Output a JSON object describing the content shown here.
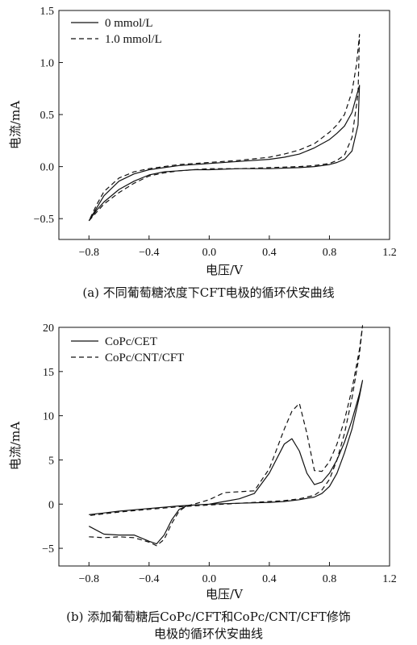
{
  "chart_data": [
    {
      "type": "line",
      "caption": "(a) 不同葡萄糖浓度下CFT电极的循环伏安曲线",
      "xlabel": "电压/V",
      "ylabel": "电流/mA",
      "xlim": [
        -1.0,
        1.2
      ],
      "ylim": [
        -0.7,
        1.5
      ],
      "xticks": [
        -0.8,
        -0.4,
        0.0,
        0.4,
        0.8,
        1.2
      ],
      "yticks": [
        -0.5,
        0.0,
        0.5,
        1.0,
        1.5
      ],
      "xtick_labels": [
        "−0.8",
        "−0.4",
        "0.0",
        "0.4",
        "0.8",
        "1.2"
      ],
      "ytick_labels": [
        "−0.5",
        "0.0",
        "0.5",
        "1.0",
        "1.5"
      ],
      "legend_position": "top-left",
      "series": [
        {
          "name": "0 mmol/L",
          "style": "solid",
          "x": [
            -0.8,
            -0.75,
            -0.7,
            -0.6,
            -0.5,
            -0.4,
            -0.3,
            -0.2,
            -0.1,
            0.0,
            0.2,
            0.4,
            0.6,
            0.7,
            0.8,
            0.85,
            0.9,
            0.95,
            0.99,
            1.0,
            0.98,
            0.95,
            0.9,
            0.85,
            0.8,
            0.7,
            0.6,
            0.5,
            0.4,
            0.2,
            0.0,
            -0.2,
            -0.3,
            -0.4,
            -0.5,
            -0.6,
            -0.7,
            -0.75,
            -0.8
          ],
          "y": [
            -0.52,
            -0.42,
            -0.34,
            -0.22,
            -0.14,
            -0.08,
            -0.05,
            -0.04,
            -0.03,
            -0.03,
            -0.02,
            -0.02,
            -0.01,
            0.0,
            0.02,
            0.04,
            0.07,
            0.15,
            0.4,
            0.78,
            0.68,
            0.52,
            0.39,
            0.32,
            0.26,
            0.18,
            0.12,
            0.09,
            0.07,
            0.05,
            0.03,
            0.01,
            -0.01,
            -0.03,
            -0.07,
            -0.14,
            -0.28,
            -0.4,
            -0.52
          ]
        },
        {
          "name": "1.0 mmol/L",
          "style": "dashed",
          "x": [
            -0.8,
            -0.75,
            -0.7,
            -0.6,
            -0.5,
            -0.4,
            -0.3,
            -0.2,
            -0.1,
            0.0,
            0.2,
            0.4,
            0.6,
            0.7,
            0.8,
            0.85,
            0.9,
            0.95,
            0.99,
            1.0,
            0.98,
            0.95,
            0.9,
            0.85,
            0.8,
            0.7,
            0.6,
            0.5,
            0.4,
            0.2,
            0.0,
            -0.2,
            -0.3,
            -0.4,
            -0.5,
            -0.6,
            -0.7,
            -0.75,
            -0.8
          ],
          "y": [
            -0.52,
            -0.44,
            -0.36,
            -0.25,
            -0.16,
            -0.09,
            -0.06,
            -0.04,
            -0.03,
            -0.02,
            -0.02,
            -0.01,
            0.0,
            0.01,
            0.03,
            0.06,
            0.11,
            0.28,
            0.7,
            1.27,
            0.98,
            0.72,
            0.5,
            0.4,
            0.33,
            0.22,
            0.16,
            0.12,
            0.09,
            0.06,
            0.04,
            0.02,
            0.0,
            -0.02,
            -0.05,
            -0.11,
            -0.24,
            -0.37,
            -0.52
          ]
        }
      ]
    },
    {
      "type": "line",
      "caption_lines": [
        "(b) 添加葡萄糖后CoPc/CFT和CoPc/CNT/CFT修饰",
        "电极的循环伏安曲线"
      ],
      "xlabel": "电压/V",
      "ylabel": "电流/mA",
      "xlim": [
        -1.0,
        1.2
      ],
      "ylim": [
        -7,
        20
      ],
      "xticks": [
        -0.8,
        -0.4,
        0.0,
        0.4,
        0.8,
        1.2
      ],
      "yticks": [
        -5,
        0,
        5,
        10,
        15,
        20
      ],
      "xtick_labels": [
        "−0.8",
        "−0.4",
        "0.0",
        "0.4",
        "0.8",
        "1.2"
      ],
      "ytick_labels": [
        "−5",
        "0",
        "5",
        "10",
        "15",
        "20"
      ],
      "legend_position": "top-left",
      "series": [
        {
          "name": "CoPc/CET",
          "style": "solid",
          "x": [
            -0.8,
            -0.7,
            -0.6,
            -0.5,
            -0.4,
            -0.35,
            -0.3,
            -0.25,
            -0.2,
            -0.15,
            -0.1,
            0.0,
            0.1,
            0.2,
            0.3,
            0.4,
            0.5,
            0.55,
            0.6,
            0.65,
            0.7,
            0.75,
            0.8,
            0.85,
            0.9,
            0.95,
            1.0,
            1.02,
            1.0,
            0.95,
            0.9,
            0.85,
            0.8,
            0.75,
            0.7,
            0.6,
            0.5,
            0.4,
            0.3,
            0.2,
            0.1,
            0.0,
            -0.2,
            -0.4,
            -0.6,
            -0.8
          ],
          "y": [
            -2.5,
            -3.4,
            -3.5,
            -3.5,
            -4.2,
            -4.5,
            -3.5,
            -1.8,
            -0.6,
            -0.2,
            -0.1,
            0.0,
            0.3,
            0.6,
            1.2,
            3.5,
            6.8,
            7.4,
            6.0,
            3.5,
            2.2,
            2.5,
            3.5,
            5.0,
            7.0,
            9.5,
            12.5,
            14.0,
            12.2,
            8.5,
            5.8,
            3.5,
            2.0,
            1.2,
            0.8,
            0.5,
            0.3,
            0.2,
            0.15,
            0.1,
            0.05,
            0.0,
            -0.2,
            -0.5,
            -0.8,
            -1.2
          ]
        },
        {
          "name": "CoPc/CNT/CFT",
          "style": "dashed",
          "x": [
            -0.8,
            -0.7,
            -0.6,
            -0.5,
            -0.4,
            -0.35,
            -0.3,
            -0.25,
            -0.2,
            -0.15,
            -0.1,
            0.0,
            0.1,
            0.2,
            0.3,
            0.4,
            0.5,
            0.55,
            0.6,
            0.65,
            0.7,
            0.75,
            0.8,
            0.85,
            0.9,
            0.95,
            1.0,
            1.02,
            1.0,
            0.95,
            0.9,
            0.85,
            0.8,
            0.75,
            0.7,
            0.6,
            0.5,
            0.4,
            0.3,
            0.2,
            0.1,
            0.0,
            -0.2,
            -0.4,
            -0.6,
            -0.8
          ],
          "y": [
            -3.7,
            -3.8,
            -3.7,
            -3.8,
            -4.3,
            -4.7,
            -4.0,
            -2.2,
            -0.8,
            -0.2,
            0.0,
            0.5,
            1.3,
            1.4,
            1.5,
            4.0,
            8.5,
            10.5,
            11.4,
            8.0,
            3.8,
            3.7,
            4.8,
            6.8,
            9.5,
            13.0,
            17.5,
            20.2,
            17.0,
            12.0,
            8.0,
            5.0,
            2.8,
            1.6,
            1.0,
            0.6,
            0.4,
            0.3,
            0.2,
            0.1,
            0.0,
            -0.1,
            -0.3,
            -0.6,
            -0.9,
            -1.3
          ]
        }
      ]
    }
  ]
}
